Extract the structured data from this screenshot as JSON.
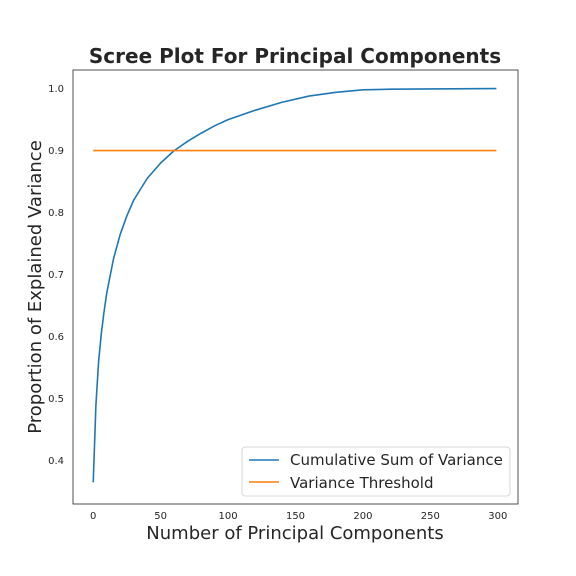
{
  "chart_data": {
    "type": "line",
    "title": "Scree Plot For Principal Components",
    "xlabel": "Number of Principal Components",
    "ylabel": "Proportion of Explained Variance",
    "xlim": [
      -15,
      315
    ],
    "ylim": [
      0.33,
      1.03
    ],
    "xticks": [
      "0",
      "50",
      "100",
      "150",
      "200",
      "250",
      "300"
    ],
    "yticks": [
      "0.4",
      "0.5",
      "0.6",
      "0.7",
      "0.8",
      "0.9",
      "1.0"
    ],
    "grid": false,
    "legend_position": "lower-right",
    "series": [
      {
        "name": "Cumulative Sum of Variance",
        "color": "#1f77b4",
        "x": [
          0,
          2,
          4,
          6,
          8,
          10,
          15,
          20,
          25,
          30,
          40,
          50,
          60,
          70,
          80,
          90,
          100,
          120,
          140,
          160,
          180,
          200,
          220,
          250,
          299
        ],
        "y": [
          0.365,
          0.49,
          0.56,
          0.605,
          0.64,
          0.67,
          0.725,
          0.765,
          0.795,
          0.82,
          0.855,
          0.88,
          0.9,
          0.915,
          0.928,
          0.94,
          0.95,
          0.965,
          0.978,
          0.988,
          0.994,
          0.998,
          0.999,
          0.9995,
          1.0
        ]
      },
      {
        "name": "Variance Threshold",
        "color": "#ff7f0e",
        "x": [
          0,
          299
        ],
        "y": [
          0.9,
          0.9
        ]
      }
    ]
  }
}
